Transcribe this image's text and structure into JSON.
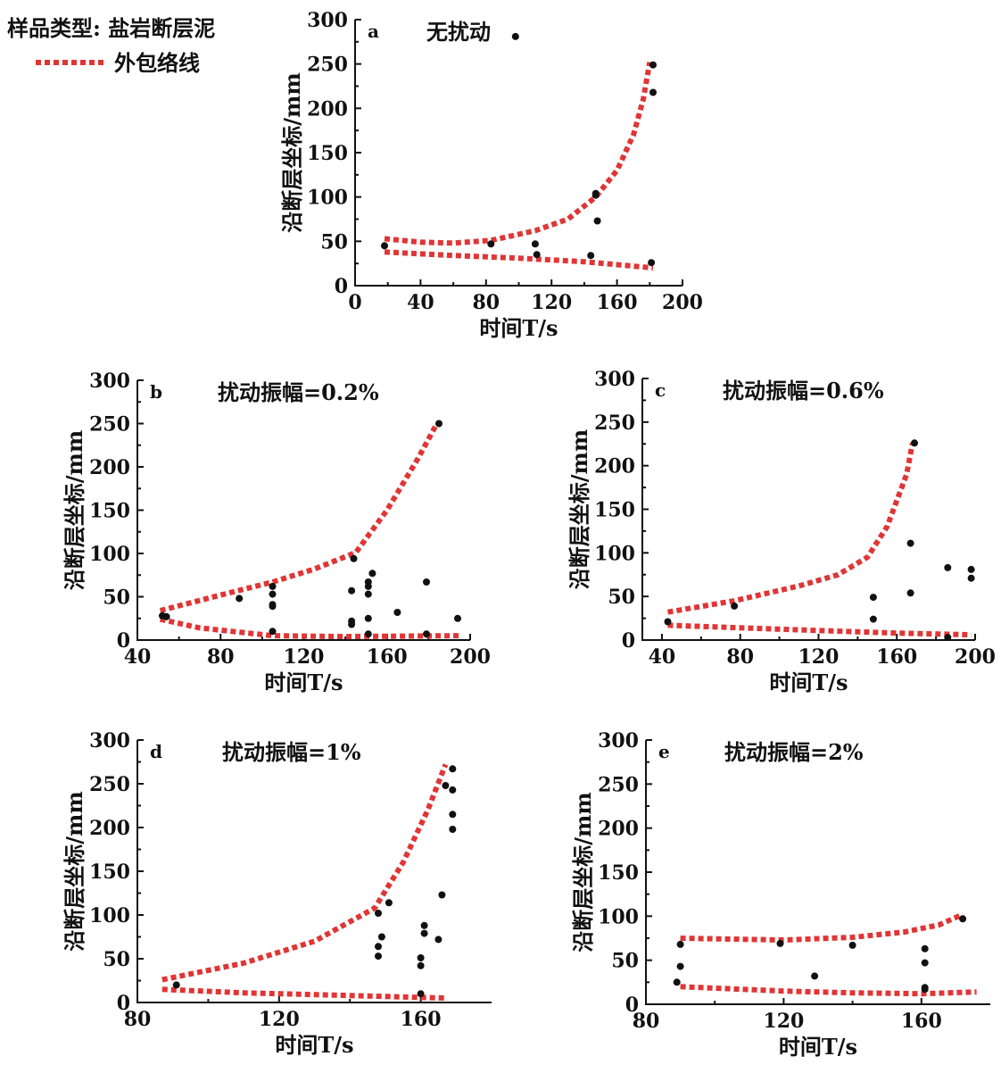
{
  "legend": {
    "sample_type": "样品类型: 盐岩断层泥",
    "envelope_label": "外包络线",
    "envelope_color": "#e03535"
  },
  "chart_data": [
    {
      "id": "a",
      "type": "scatter",
      "label": "a",
      "title": "无扰动",
      "xlabel": "时间T/s",
      "ylabel": "沿断层坐标/mm",
      "xlim": [
        0,
        200
      ],
      "ylim": [
        0,
        300
      ],
      "xticks": [
        0,
        40,
        80,
        120,
        160,
        200
      ],
      "yticks": [
        0,
        50,
        100,
        150,
        200,
        250,
        300
      ],
      "points": [
        [
          18,
          45
        ],
        [
          83,
          47
        ],
        [
          110,
          47
        ],
        [
          111,
          35
        ],
        [
          144,
          34
        ],
        [
          147,
          104
        ],
        [
          147,
          102
        ],
        [
          148,
          73
        ],
        [
          181,
          26
        ],
        [
          182,
          249
        ],
        [
          182,
          218
        ]
      ],
      "envelope_upper": [
        [
          18,
          53
        ],
        [
          40,
          49
        ],
        [
          60,
          48
        ],
        [
          83,
          51
        ],
        [
          110,
          62
        ],
        [
          130,
          75
        ],
        [
          147,
          100
        ],
        [
          160,
          130
        ],
        [
          170,
          170
        ],
        [
          176,
          210
        ],
        [
          180,
          252
        ]
      ],
      "envelope_lower": [
        [
          18,
          38
        ],
        [
          60,
          34
        ],
        [
          100,
          31
        ],
        [
          140,
          27
        ],
        [
          182,
          20
        ]
      ],
      "extra_points": [
        [
          98,
          281
        ]
      ]
    },
    {
      "id": "b",
      "type": "scatter",
      "label": "b",
      "title": "扰动振幅=0.2%",
      "xlabel": "时间T/s",
      "ylabel": "沿断层坐标/mm",
      "xlim": [
        40,
        200
      ],
      "ylim": [
        0,
        300
      ],
      "xticks": [
        40,
        80,
        120,
        160,
        200
      ],
      "yticks": [
        0,
        50,
        100,
        150,
        200,
        250,
        300
      ],
      "points": [
        [
          52,
          28
        ],
        [
          54,
          27
        ],
        [
          89,
          48
        ],
        [
          105,
          62
        ],
        [
          105,
          53
        ],
        [
          105,
          41
        ],
        [
          105,
          39
        ],
        [
          105,
          10
        ],
        [
          144,
          94
        ],
        [
          143,
          57
        ],
        [
          143,
          22
        ],
        [
          143,
          18
        ],
        [
          151,
          67
        ],
        [
          151,
          62
        ],
        [
          151,
          53
        ],
        [
          151,
          25
        ],
        [
          151,
          7
        ],
        [
          153,
          77
        ],
        [
          165,
          32
        ],
        [
          179,
          67
        ],
        [
          179,
          7
        ],
        [
          194,
          25
        ],
        [
          185,
          250
        ]
      ],
      "envelope_upper": [
        [
          51,
          34
        ],
        [
          80,
          52
        ],
        [
          105,
          67
        ],
        [
          125,
          82
        ],
        [
          145,
          101
        ],
        [
          160,
          150
        ],
        [
          175,
          210
        ],
        [
          184,
          250
        ]
      ],
      "envelope_lower": [
        [
          51,
          24
        ],
        [
          70,
          14
        ],
        [
          105,
          5
        ],
        [
          140,
          4
        ],
        [
          195,
          5
        ]
      ]
    },
    {
      "id": "c",
      "type": "scatter",
      "label": "c",
      "title": "扰动振幅=0.6%",
      "xlabel": "时间T/s",
      "ylabel": "沿断层坐标/mm",
      "xlim": [
        30,
        200
      ],
      "ylim": [
        0,
        300
      ],
      "xticks": [
        40,
        80,
        120,
        160,
        200
      ],
      "yticks": [
        0,
        50,
        100,
        150,
        200,
        250,
        300
      ],
      "points": [
        [
          43,
          21
        ],
        [
          77,
          39
        ],
        [
          148,
          49
        ],
        [
          148,
          24
        ],
        [
          167,
          111
        ],
        [
          167,
          54
        ],
        [
          169,
          226
        ],
        [
          186,
          83
        ],
        [
          186,
          3
        ],
        [
          198,
          81
        ],
        [
          198,
          71
        ]
      ],
      "envelope_upper": [
        [
          43,
          32
        ],
        [
          77,
          45
        ],
        [
          110,
          62
        ],
        [
          130,
          75
        ],
        [
          145,
          95
        ],
        [
          155,
          130
        ],
        [
          165,
          190
        ],
        [
          168,
          226
        ]
      ],
      "envelope_lower": [
        [
          43,
          17
        ],
        [
          80,
          14
        ],
        [
          120,
          11
        ],
        [
          160,
          8
        ],
        [
          198,
          6
        ]
      ]
    },
    {
      "id": "d",
      "type": "scatter",
      "label": "d",
      "title": "扰动振幅=1%",
      "xlabel": "时间T/s",
      "ylabel": "沿断层坐标/mm",
      "xlim": [
        80,
        180
      ],
      "ylim": [
        0,
        300
      ],
      "xticks": [
        80,
        120,
        160
      ],
      "yticks": [
        0,
        50,
        100,
        150,
        200,
        250,
        300
      ],
      "points": [
        [
          91,
          20
        ],
        [
          148,
          102
        ],
        [
          148,
          64
        ],
        [
          148,
          53
        ],
        [
          149,
          75
        ],
        [
          151,
          114
        ],
        [
          160,
          51
        ],
        [
          160,
          42
        ],
        [
          160,
          10
        ],
        [
          161,
          88
        ],
        [
          161,
          79
        ],
        [
          165,
          72
        ],
        [
          166,
          123
        ],
        [
          167,
          248
        ],
        [
          169,
          267
        ],
        [
          169,
          243
        ],
        [
          169,
          215
        ],
        [
          169,
          198
        ]
      ],
      "envelope_upper": [
        [
          87,
          26
        ],
        [
          110,
          45
        ],
        [
          130,
          70
        ],
        [
          147,
          108
        ],
        [
          155,
          160
        ],
        [
          162,
          220
        ],
        [
          167,
          272
        ]
      ],
      "envelope_lower": [
        [
          87,
          15
        ],
        [
          110,
          11
        ],
        [
          140,
          8
        ],
        [
          167,
          5
        ]
      ]
    },
    {
      "id": "e",
      "type": "scatter",
      "label": "e",
      "title": "扰动振幅=2%",
      "xlabel": "时间T/s",
      "ylabel": "沿断层坐标/mm",
      "xlim": [
        80,
        180
      ],
      "ylim": [
        0,
        300
      ],
      "xticks": [
        80,
        120,
        160
      ],
      "yticks": [
        0,
        50,
        100,
        150,
        200,
        250,
        300
      ],
      "points": [
        [
          89,
          25
        ],
        [
          90,
          68
        ],
        [
          90,
          43
        ],
        [
          119,
          69
        ],
        [
          129,
          32
        ],
        [
          140,
          67
        ],
        [
          161,
          63
        ],
        [
          161,
          47
        ],
        [
          161,
          19
        ],
        [
          161,
          17
        ],
        [
          172,
          97
        ]
      ],
      "envelope_upper": [
        [
          90,
          75
        ],
        [
          120,
          73
        ],
        [
          140,
          76
        ],
        [
          155,
          82
        ],
        [
          165,
          90
        ],
        [
          172,
          102
        ]
      ],
      "envelope_lower": [
        [
          90,
          20
        ],
        [
          120,
          15
        ],
        [
          140,
          13
        ],
        [
          160,
          12
        ],
        [
          176,
          14
        ]
      ]
    }
  ]
}
